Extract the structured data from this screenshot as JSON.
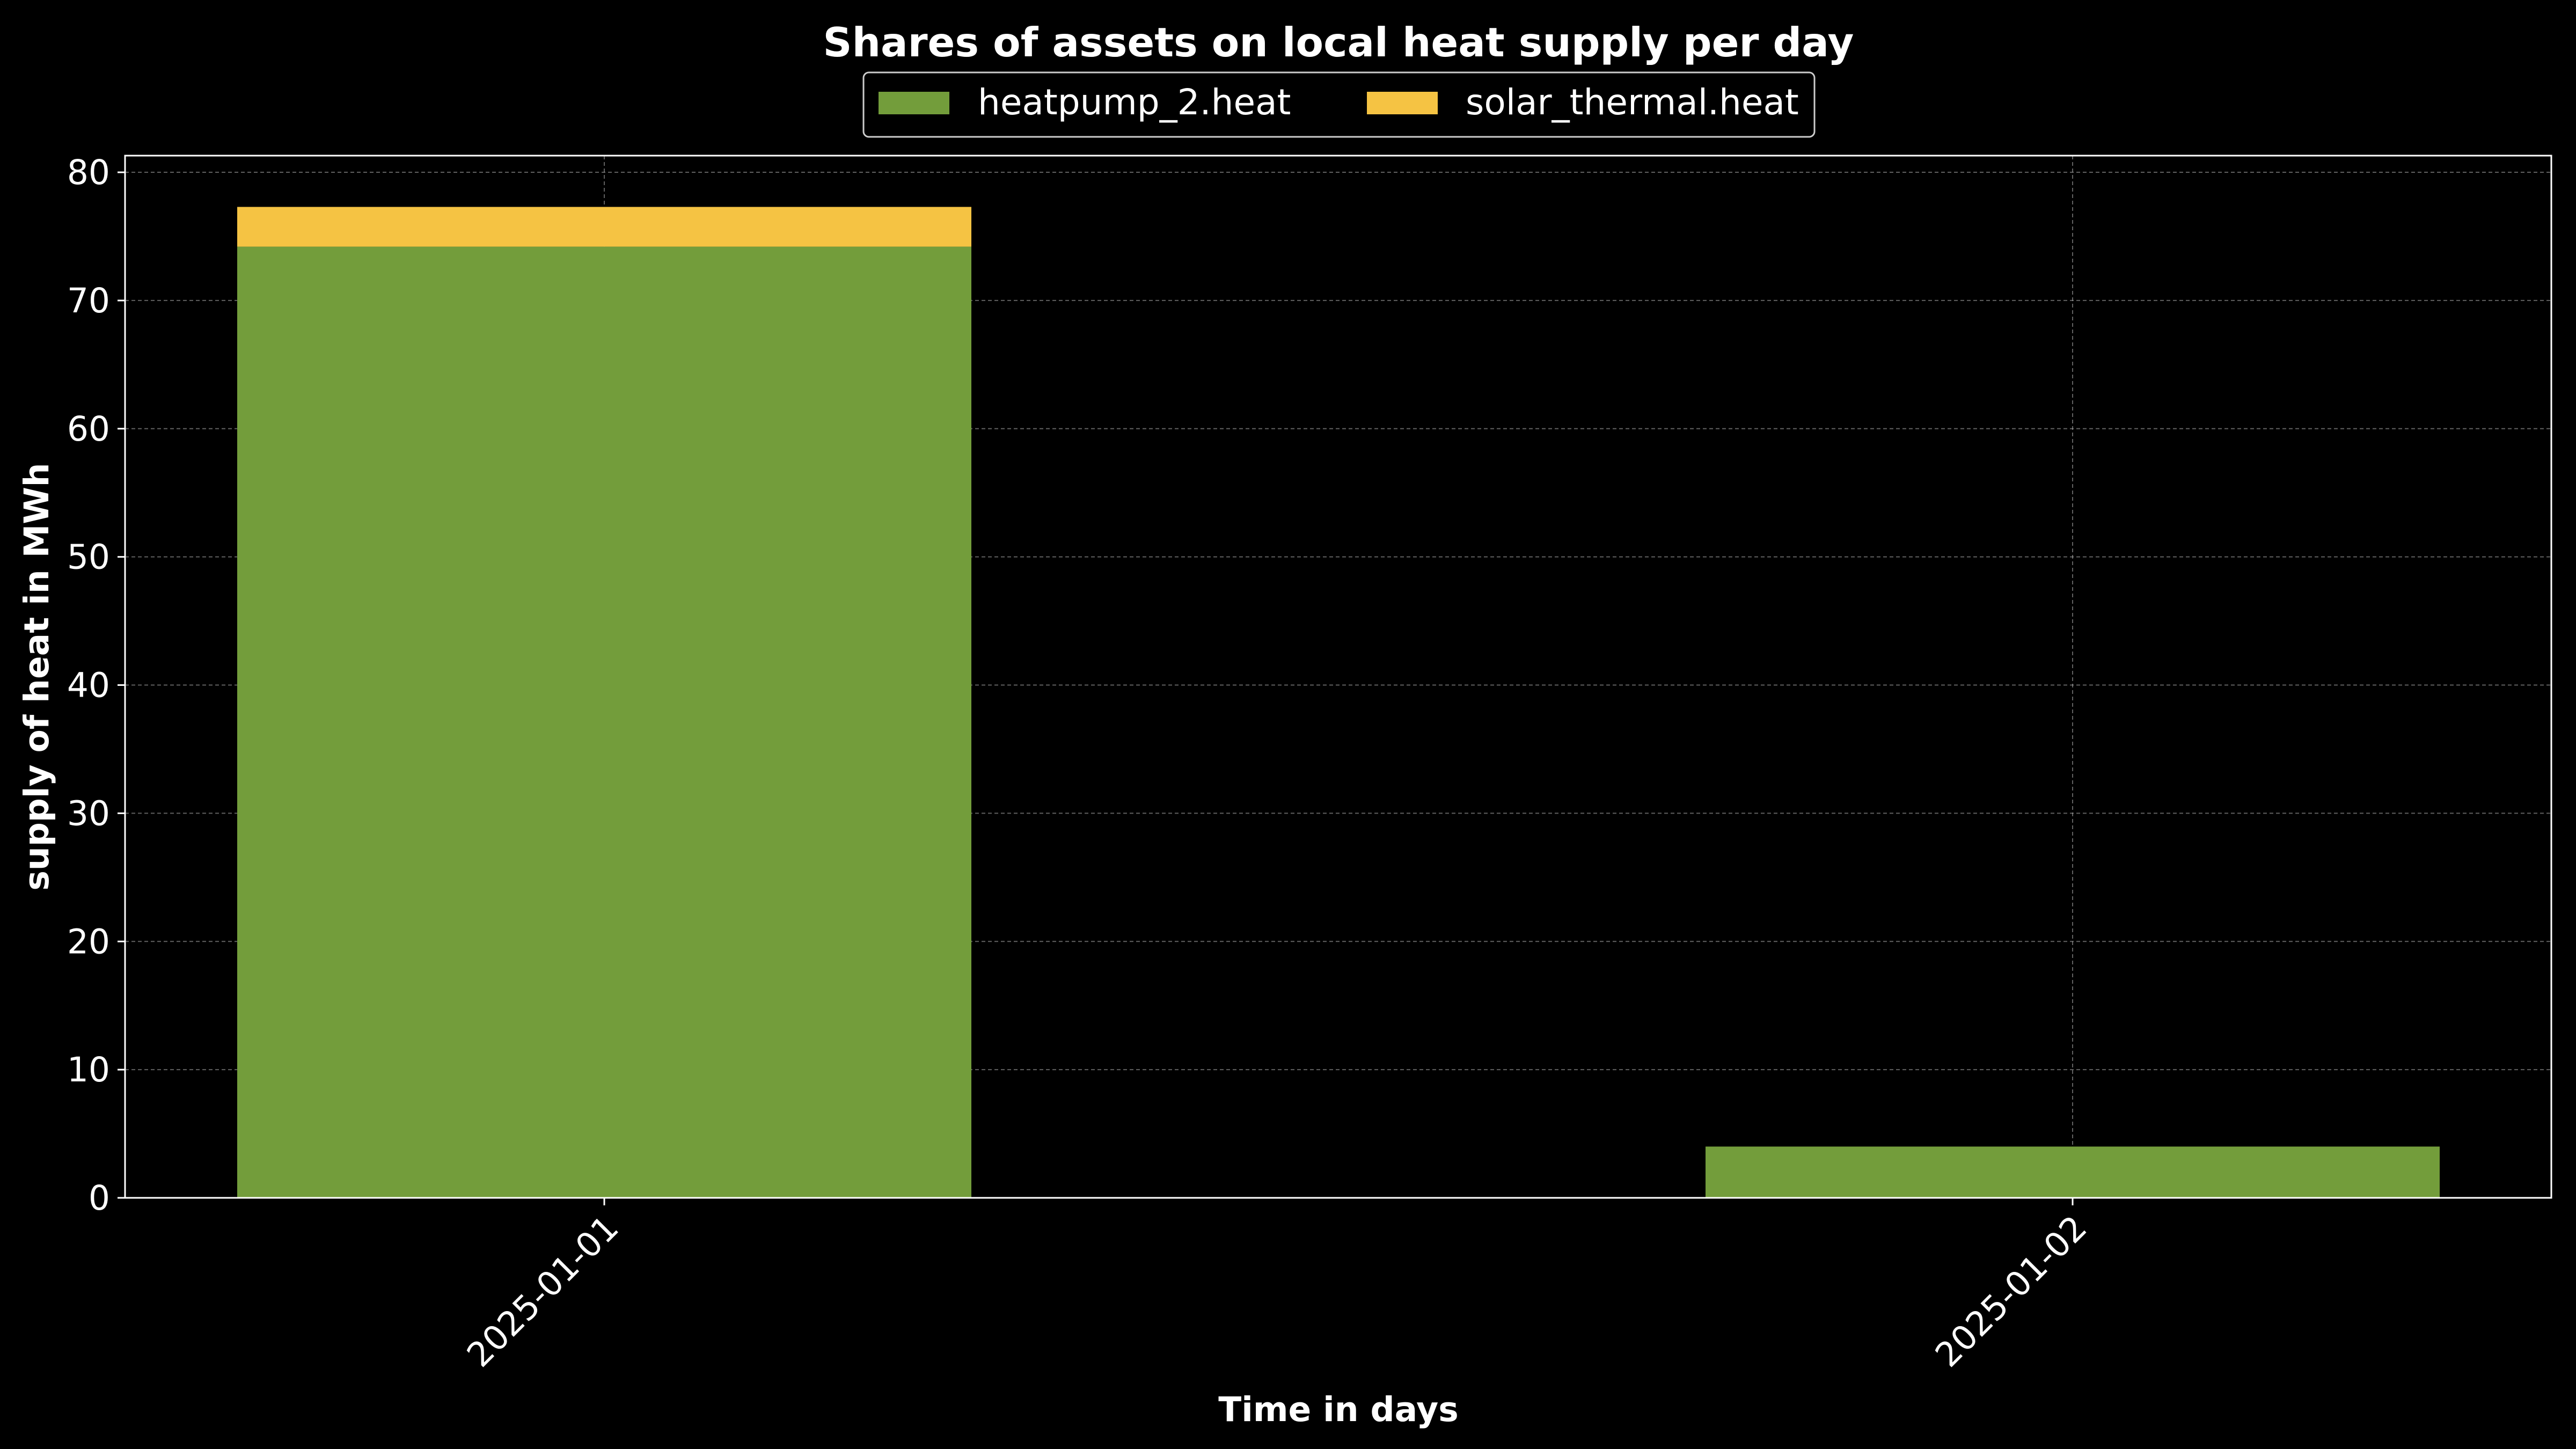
{
  "chart_data": {
    "type": "bar",
    "stacked": true,
    "title": "Shares of assets on local heat supply per day",
    "xlabel": "Time in days",
    "ylabel": "supply of heat in MWh",
    "categories": [
      "2025-01-01",
      "2025-01-02"
    ],
    "series": [
      {
        "name": "heatpump_2.heat",
        "color": "#739d3b",
        "values": [
          74.2,
          4.0
        ]
      },
      {
        "name": "solar_thermal.heat",
        "color": "#f5c343",
        "values": [
          3.1,
          0.0
        ]
      }
    ],
    "yticks": [
      0,
      10,
      20,
      30,
      40,
      50,
      60,
      70,
      80
    ],
    "ylim": [
      0,
      81.3
    ],
    "grid": true,
    "legend_position": "top-center",
    "background_color": "#000000",
    "foreground_color": "#ffffff"
  }
}
